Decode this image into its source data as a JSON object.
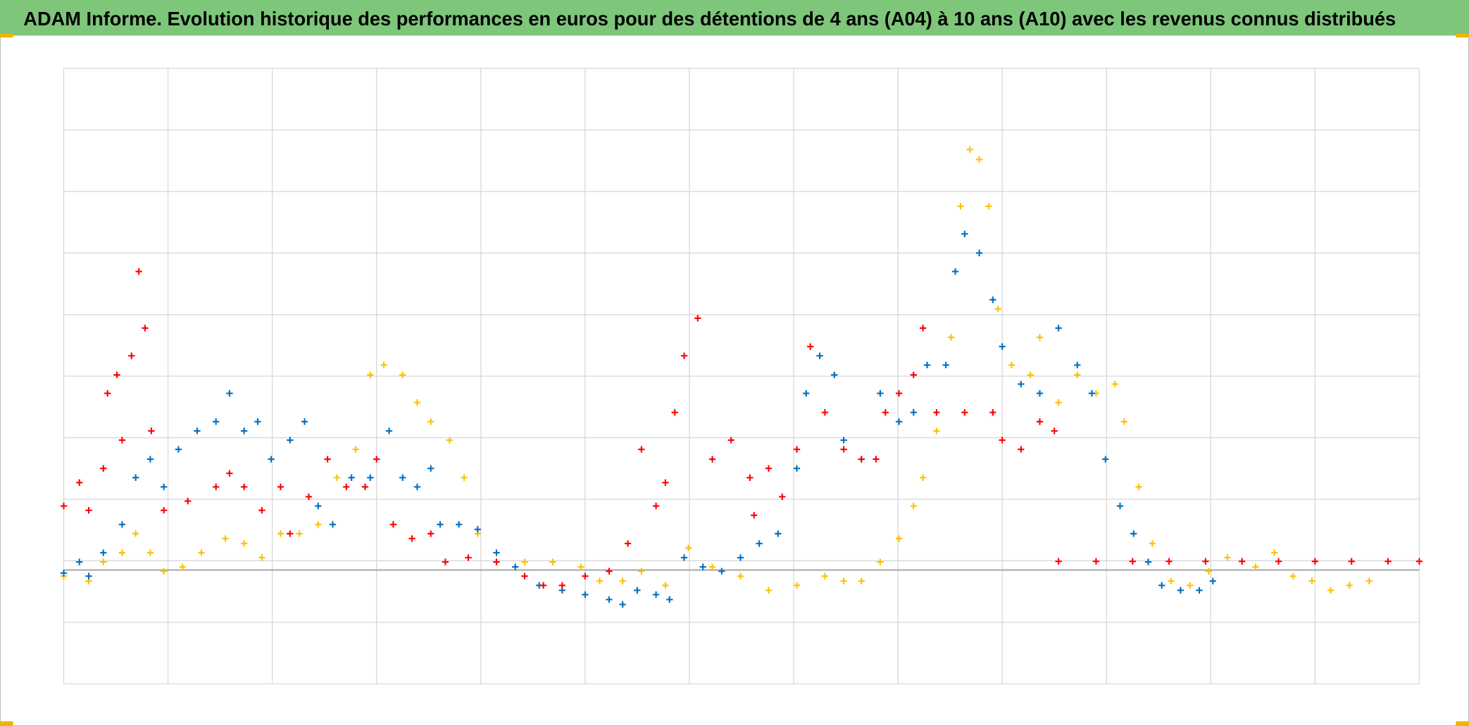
{
  "chart_data": {
    "type": "scatter",
    "title": "ADAM Informe. Evolution historique des performances en euros pour des détentions de 4 ans (A04) à 10 ans (A10) avec les revenus connus distribués",
    "xlim": [
      0,
      13
    ],
    "xticks": [
      0,
      1,
      2,
      3,
      4,
      5,
      6,
      7,
      8,
      9,
      10,
      11,
      12,
      13
    ],
    "ylim": [
      0,
      10
    ],
    "yticks": [
      0,
      1,
      2,
      3,
      4,
      5,
      6,
      7,
      8,
      9,
      10
    ],
    "baseline": 1.85,
    "grid": true,
    "series": [
      {
        "color": "#ffc000",
        "x": [
          0,
          0.24,
          0.38,
          0.56,
          0.69,
          0.83,
          0.96,
          1.14,
          1.32,
          1.55,
          1.73,
          1.9,
          2.08,
          2.26,
          2.44,
          2.62,
          2.8,
          2.94,
          3.07,
          3.25,
          3.39,
          3.52,
          3.7,
          3.84,
          3.97,
          4.15,
          4.42,
          4.69,
          4.96,
          5.14,
          5.36,
          5.54,
          5.77,
          5.99,
          6.22,
          6.49,
          6.76,
          7.03,
          7.3,
          7.48,
          7.65,
          7.83,
          8.01,
          8.15,
          8.24,
          8.37,
          8.51,
          8.6,
          8.69,
          8.78,
          8.87,
          8.96,
          9.09,
          9.27,
          9.36,
          9.54,
          9.72,
          9.9,
          10.08,
          10.17,
          10.31,
          10.44,
          10.62,
          10.8,
          10.98,
          11.16,
          11.43,
          11.61,
          11.79,
          11.97,
          12.15,
          12.33,
          12.52
        ],
        "values": [
          1.75,
          1.67,
          1.98,
          2.13,
          2.44,
          2.13,
          1.83,
          1.9,
          2.13,
          2.36,
          2.28,
          2.05,
          2.44,
          2.44,
          2.59,
          3.35,
          3.81,
          5.02,
          5.18,
          5.02,
          4.57,
          4.26,
          3.96,
          3.35,
          2.44,
          1.98,
          1.98,
          1.98,
          1.9,
          1.67,
          1.67,
          1.83,
          1.6,
          2.21,
          1.9,
          1.75,
          1.52,
          1.6,
          1.75,
          1.67,
          1.67,
          1.98,
          2.36,
          2.89,
          3.35,
          4.11,
          5.63,
          7.76,
          8.68,
          8.52,
          7.76,
          6.09,
          5.18,
          5.02,
          5.63,
          4.57,
          5.02,
          4.72,
          4.87,
          4.26,
          3.2,
          2.28,
          1.67,
          1.6,
          1.83,
          2.05,
          1.9,
          2.13,
          1.75,
          1.67,
          1.52,
          1.6,
          1.67
        ]
      },
      {
        "color": "#0070c0",
        "x": [
          0,
          0.15,
          0.24,
          0.38,
          0.56,
          0.69,
          0.83,
          0.96,
          1.1,
          1.28,
          1.46,
          1.59,
          1.73,
          1.86,
          1.99,
          2.17,
          2.31,
          2.44,
          2.58,
          2.76,
          2.94,
          3.12,
          3.25,
          3.39,
          3.52,
          3.61,
          3.79,
          3.97,
          4.15,
          4.33,
          4.56,
          4.78,
          5,
          5.23,
          5.36,
          5.5,
          5.68,
          5.81,
          5.95,
          6.13,
          6.31,
          6.49,
          6.67,
          6.85,
          7.03,
          7.12,
          7.25,
          7.39,
          7.48,
          7.65,
          7.83,
          8.01,
          8.15,
          8.28,
          8.46,
          8.55,
          8.64,
          8.78,
          8.91,
          9,
          9.18,
          9.36,
          9.54,
          9.72,
          9.86,
          9.99,
          10.13,
          10.26,
          10.4,
          10.53,
          10.71,
          10.89,
          11.02
        ],
        "values": [
          1.8,
          1.98,
          1.75,
          2.13,
          2.59,
          3.35,
          3.65,
          3.2,
          3.81,
          4.11,
          4.26,
          4.72,
          4.11,
          4.26,
          3.65,
          3.96,
          4.26,
          2.89,
          2.59,
          3.35,
          3.35,
          4.11,
          3.35,
          3.2,
          3.5,
          2.59,
          2.59,
          2.51,
          2.13,
          1.9,
          1.6,
          1.52,
          1.45,
          1.37,
          1.29,
          1.52,
          1.45,
          1.37,
          2.05,
          1.9,
          1.83,
          2.05,
          2.28,
          2.44,
          3.5,
          4.72,
          5.33,
          5.02,
          3.96,
          3.65,
          4.72,
          4.26,
          4.41,
          5.18,
          5.18,
          6.7,
          7.31,
          7,
          6.24,
          5.48,
          4.87,
          4.72,
          5.78,
          5.18,
          4.72,
          3.65,
          2.89,
          2.44,
          1.98,
          1.6,
          1.52,
          1.52,
          1.67
        ]
      },
      {
        "color": "#ff0000",
        "x": [
          0,
          0.15,
          0.24,
          0.38,
          0.42,
          0.51,
          0.56,
          0.65,
          0.72,
          0.78,
          0.84,
          0.96,
          1.19,
          1.46,
          1.59,
          1.73,
          1.9,
          2.08,
          2.17,
          2.35,
          2.53,
          2.71,
          2.89,
          3,
          3.16,
          3.34,
          3.52,
          3.66,
          3.88,
          4.15,
          4.42,
          4.6,
          4.78,
          5,
          5.23,
          5.41,
          5.54,
          5.68,
          5.77,
          5.86,
          5.95,
          6.08,
          6.22,
          6.4,
          6.58,
          6.62,
          6.76,
          6.89,
          7.03,
          7.16,
          7.3,
          7.48,
          7.65,
          7.79,
          7.88,
          8.01,
          8.15,
          8.24,
          8.37,
          8.64,
          8.91,
          9,
          9.18,
          9.36,
          9.5,
          9.54,
          9.9,
          10.25,
          10.6,
          10.95,
          11.3,
          11.65,
          12,
          12.35,
          12.7,
          13
        ],
        "values": [
          2.89,
          3.27,
          2.82,
          3.5,
          4.72,
          5.02,
          3.96,
          5.33,
          6.7,
          5.78,
          4.11,
          2.82,
          2.97,
          3.2,
          3.42,
          3.2,
          2.82,
          3.2,
          2.44,
          3.04,
          3.65,
          3.2,
          3.2,
          3.65,
          2.59,
          2.36,
          2.44,
          1.98,
          2.05,
          1.98,
          1.75,
          1.6,
          1.6,
          1.75,
          1.83,
          2.28,
          3.81,
          2.89,
          3.27,
          4.41,
          5.33,
          5.94,
          3.65,
          3.96,
          3.35,
          2.74,
          3.5,
          3.04,
          3.81,
          5.48,
          4.41,
          3.81,
          3.65,
          3.65,
          4.41,
          4.72,
          5.02,
          5.78,
          4.41,
          4.41,
          4.41,
          3.96,
          3.81,
          4.26,
          4.11,
          1.99,
          1.99,
          1.99,
          1.99,
          1.99,
          1.99,
          1.99,
          1.99,
          1.99,
          1.99,
          1.99
        ]
      }
    ]
  }
}
